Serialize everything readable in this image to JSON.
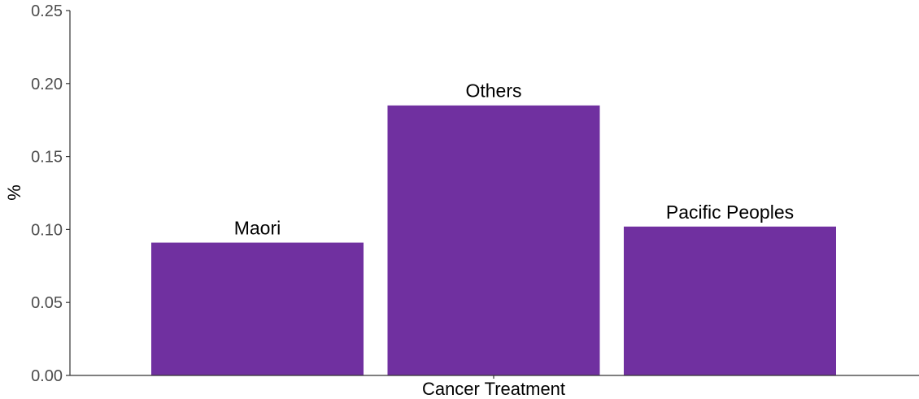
{
  "chart_data": {
    "type": "bar",
    "categories": [
      "Maori",
      "Others",
      "Pacific Peoples"
    ],
    "values": [
      0.091,
      0.185,
      0.102
    ],
    "xlabel": "Cancer Treatment",
    "ylabel": "%",
    "ylim": [
      0,
      0.25
    ],
    "yticks": [
      "0.00",
      "0.05",
      "0.10",
      "0.15",
      "0.20",
      "0.25"
    ],
    "ytick_values": [
      0,
      0.05,
      0.1,
      0.15,
      0.2,
      0.25
    ],
    "bar_color": "#7030a0",
    "grid": false,
    "legend": "none"
  }
}
